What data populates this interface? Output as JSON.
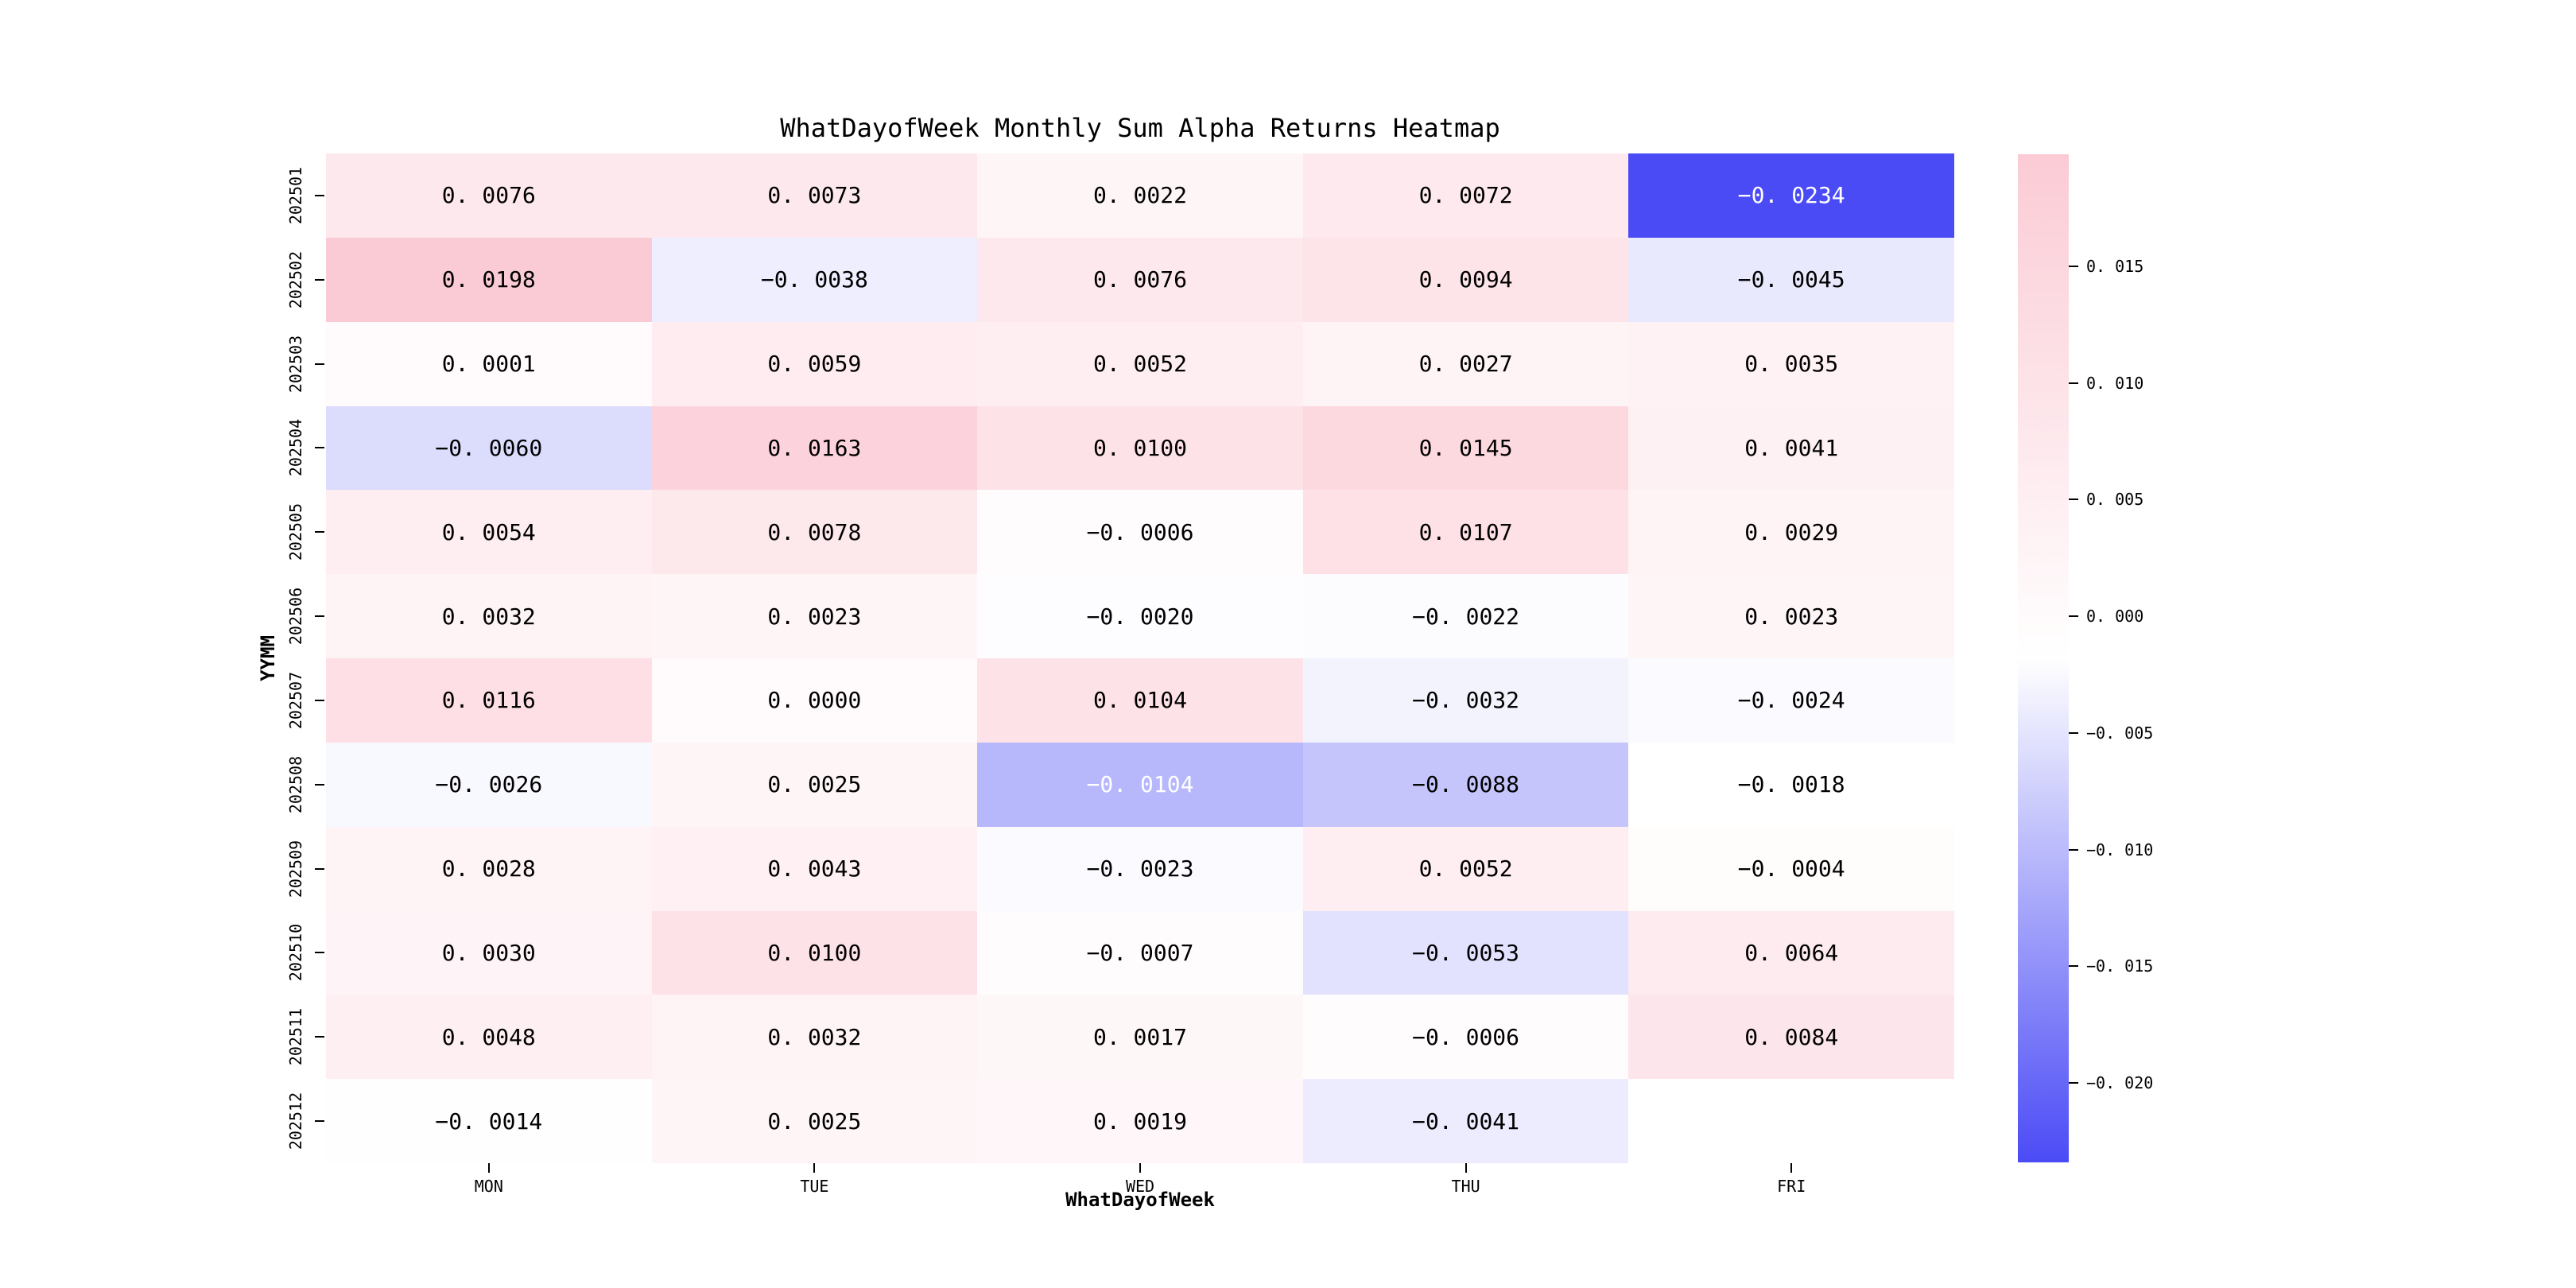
{
  "chart_data": {
    "type": "heatmap",
    "title": "WhatDayofWeek Monthly Sum Alpha Returns Heatmap",
    "xlabel": "WhatDayofWeek",
    "ylabel": "YYMM",
    "x_categories": [
      "MON",
      "TUE",
      "WED",
      "THU",
      "FRI"
    ],
    "y_categories": [
      "202501",
      "202502",
      "202503",
      "202504",
      "202505",
      "202506",
      "202507",
      "202508",
      "202509",
      "202510",
      "202511",
      "202512"
    ],
    "values": [
      [
        0.0076,
        0.0073,
        0.0022,
        0.0072,
        -0.0234
      ],
      [
        0.0198,
        -0.0038,
        0.0076,
        0.0094,
        -0.0045
      ],
      [
        0.0001,
        0.0059,
        0.0052,
        0.0027,
        0.0035
      ],
      [
        -0.006,
        0.0163,
        0.01,
        0.0145,
        0.0041
      ],
      [
        0.0054,
        0.0078,
        -0.0006,
        0.0107,
        0.0029
      ],
      [
        0.0032,
        0.0023,
        -0.002,
        -0.0022,
        0.0023
      ],
      [
        0.0116,
        0.0,
        0.0104,
        -0.0032,
        -0.0024
      ],
      [
        -0.0026,
        0.0025,
        -0.0104,
        -0.0088,
        -0.0018
      ],
      [
        0.0028,
        0.0043,
        -0.0023,
        0.0052,
        -0.0004
      ],
      [
        0.003,
        0.01,
        -0.0007,
        -0.0053,
        0.0064
      ],
      [
        0.0048,
        0.0032,
        0.0017,
        -0.0006,
        0.0084
      ],
      [
        -0.0014,
        0.0025,
        0.0019,
        -0.0041,
        null
      ]
    ],
    "vmin": -0.0234,
    "vmax": 0.0198,
    "colorbar_ticks": [
      0.015,
      0.01,
      0.005,
      0.0,
      -0.005,
      -0.01,
      -0.015,
      -0.02
    ],
    "colors": {
      "positive_max": "#fbcbd5",
      "midpoint": "#ffffff",
      "negative_min": "#4b4bf6",
      "missing": "#ffffff",
      "annotation_dark": "#000000",
      "annotation_light": "#ffffff"
    },
    "legend_position": "right",
    "grid": false,
    "annotation_decimals": 4
  }
}
